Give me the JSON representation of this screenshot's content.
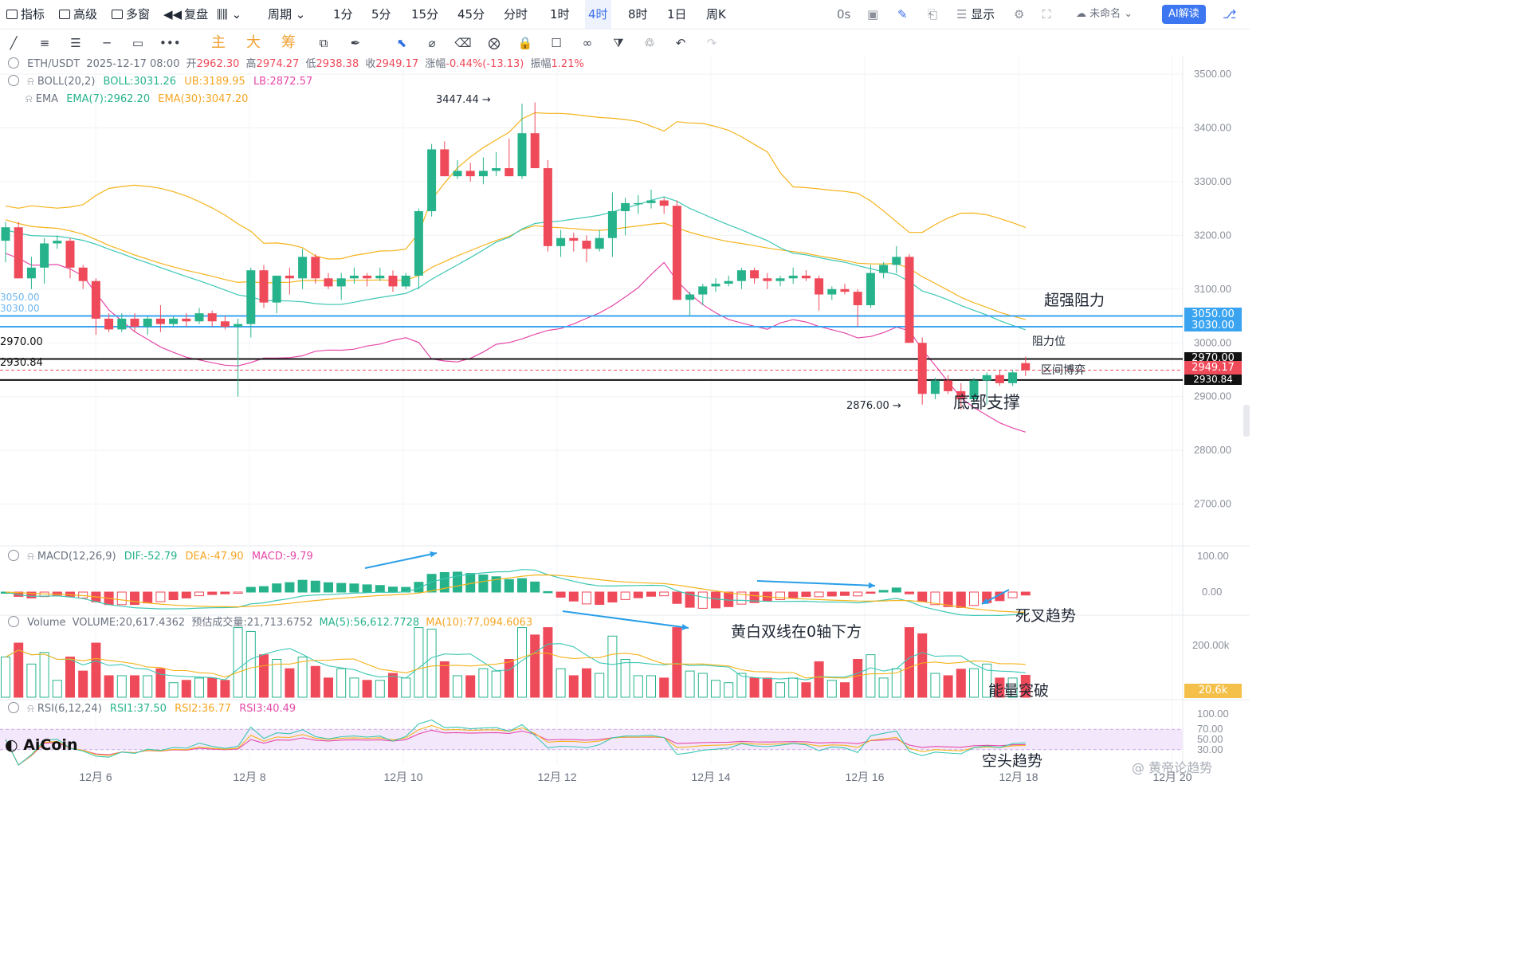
{
  "toolbar": {
    "indicators": "指标",
    "advanced": "高级",
    "multi_window": "多窗",
    "replay": "复盘",
    "period": "周期",
    "intervals": [
      "1分",
      "5分",
      "15分",
      "45分",
      "分时",
      "1时",
      "4时",
      "8时",
      "1日",
      "周K"
    ],
    "active_interval": "4时",
    "latency": "0s",
    "display": "显示",
    "account": "未命名",
    "ai_button": "AI解读"
  },
  "drawing_tools": {
    "main": "主",
    "big": "大",
    "chips": "筹"
  },
  "header": {
    "symbol": "ETH/USDT",
    "datetime": "2025-12-17 08:00",
    "open_label": "开",
    "open": "2962.30",
    "high_label": "高",
    "high": "2974.27",
    "low_label": "低",
    "low": "2938.38",
    "close_label": "收",
    "close": "2949.17",
    "change_label": "涨幅",
    "change": "-0.44%(-13.13)",
    "amplitude_label": "振幅",
    "amplitude": "1.21%"
  },
  "indicators": {
    "boll": {
      "label": "BOLL(20,2)",
      "mid": "BOLL:3031.26",
      "ub": "UB:3189.95",
      "lb": "LB:2872.57"
    },
    "ema": {
      "label": "EMA",
      "ema7": "EMA(7):2962.20",
      "ema30": "EMA(30):3047.20"
    },
    "macd": {
      "label": "MACD(12,26,9)",
      "dif": "DIF:-52.79",
      "dea": "DEA:-47.90",
      "macd": "MACD:-9.79"
    },
    "volume": {
      "label": "Volume",
      "value": "VOLUME:20,617.4362",
      "est": "预估成交量:21,713.6752",
      "ma5": "MA(5):56,612.7728",
      "ma10": "MA(10):77,094.6063"
    },
    "rsi": {
      "label": "RSI(6,12,24)",
      "rsi1": "RSI1:37.50",
      "rsi2": "RSI2:36.77",
      "rsi3": "RSI3:40.49"
    }
  },
  "annotations": {
    "strong_resistance": "超强阻力",
    "resistance": "阻力位",
    "range_game": "区间博弈",
    "bottom_support": "底部支撑",
    "death_cross": "死叉趋势",
    "below_zero": "黄白双线在0轴下方",
    "volume_break": "能量突破",
    "bear_trend": "空头趋势",
    "high_marker": "3447.44",
    "low_marker": "2876.00"
  },
  "levels": {
    "l3050": "3050.00",
    "l3030": "3030.00",
    "l2970": "2970.00",
    "l2930": "2930.84",
    "last_price": "2949.17",
    "vol_last": "20.6k"
  },
  "price_axis": [
    "3500.00",
    "3400.00",
    "3300.00",
    "3200.00",
    "3100.00",
    "3000.00",
    "2900.00",
    "2800.00",
    "2700.00"
  ],
  "macd_axis": [
    "100.00",
    "0.00"
  ],
  "vol_axis": [
    "200.00k"
  ],
  "rsi_axis": [
    "100.00",
    "70.00",
    "50.00",
    "30.00"
  ],
  "date_axis": [
    "12月 6",
    "12月 8",
    "12月 10",
    "12月 12",
    "12月 14",
    "12月 16",
    "12月 18",
    "12月 20"
  ],
  "watermark": "@ 黄帝论趋势",
  "logo": "AiCoin",
  "colors": {
    "up": "#26b38c",
    "down": "#ef4a5a",
    "boll_band": "#f5b31b",
    "boll_lb": "#e548a8",
    "ema7": "#f5b31b",
    "ema30": "#3cc7b4",
    "resistance_line": "#3aa4f0",
    "support_line": "#111111",
    "arrow": "#2a9ee8"
  },
  "chart_data": {
    "type": "candlestick",
    "symbol": "ETH/USDT",
    "interval": "4h",
    "ohlc": [
      [
        3190,
        3225,
        3150,
        3215
      ],
      [
        3215,
        3225,
        3120,
        3120
      ],
      [
        3120,
        3160,
        3100,
        3140
      ],
      [
        3140,
        3195,
        3110,
        3185
      ],
      [
        3185,
        3200,
        3175,
        3190
      ],
      [
        3190,
        3195,
        3120,
        3140
      ],
      [
        3140,
        3145,
        3100,
        3115
      ],
      [
        3115,
        3120,
        3015,
        3045
      ],
      [
        3045,
        3055,
        3020,
        3025
      ],
      [
        3025,
        3055,
        3020,
        3045
      ],
      [
        3045,
        3055,
        3020,
        3030
      ],
      [
        3030,
        3050,
        3015,
        3045
      ],
      [
        3045,
        3070,
        3020,
        3035
      ],
      [
        3035,
        3050,
        3030,
        3045
      ],
      [
        3045,
        3055,
        3030,
        3040
      ],
      [
        3040,
        3065,
        3035,
        3055
      ],
      [
        3055,
        3060,
        3030,
        3040
      ],
      [
        3040,
        3050,
        3025,
        3030
      ],
      [
        3030,
        3045,
        2900,
        3035
      ],
      [
        3035,
        3140,
        3010,
        3135
      ],
      [
        3135,
        3145,
        3065,
        3075
      ],
      [
        3075,
        3125,
        3055,
        3125
      ],
      [
        3125,
        3140,
        3090,
        3120
      ],
      [
        3120,
        3175,
        3100,
        3160
      ],
      [
        3160,
        3165,
        3110,
        3120
      ],
      [
        3120,
        3130,
        3100,
        3105
      ],
      [
        3105,
        3130,
        3080,
        3120
      ],
      [
        3120,
        3140,
        3110,
        3125
      ],
      [
        3125,
        3130,
        3105,
        3120
      ],
      [
        3120,
        3140,
        3115,
        3125
      ],
      [
        3125,
        3135,
        3095,
        3105
      ],
      [
        3105,
        3130,
        3100,
        3125
      ],
      [
        3125,
        3250,
        3100,
        3245
      ],
      [
        3245,
        3370,
        3235,
        3360
      ],
      [
        3360,
        3375,
        3310,
        3310
      ],
      [
        3310,
        3340,
        3305,
        3320
      ],
      [
        3320,
        3335,
        3300,
        3310
      ],
      [
        3310,
        3345,
        3295,
        3320
      ],
      [
        3320,
        3355,
        3310,
        3325
      ],
      [
        3325,
        3380,
        3310,
        3310
      ],
      [
        3310,
        3445,
        3305,
        3390
      ],
      [
        3390,
        3447.44,
        3325,
        3325
      ],
      [
        3325,
        3340,
        3170,
        3180
      ],
      [
        3180,
        3210,
        3160,
        3195
      ],
      [
        3195,
        3205,
        3170,
        3190
      ],
      [
        3190,
        3200,
        3150,
        3175
      ],
      [
        3175,
        3210,
        3170,
        3195
      ],
      [
        3195,
        3280,
        3160,
        3245
      ],
      [
        3245,
        3270,
        3200,
        3260
      ],
      [
        3260,
        3275,
        3240,
        3260
      ],
      [
        3260,
        3285,
        3250,
        3265
      ],
      [
        3265,
        3270,
        3240,
        3255
      ],
      [
        3255,
        3265,
        3080,
        3080
      ],
      [
        3080,
        3095,
        3050,
        3090
      ],
      [
        3090,
        3110,
        3070,
        3105
      ],
      [
        3105,
        3120,
        3095,
        3110
      ],
      [
        3110,
        3125,
        3105,
        3115
      ],
      [
        3115,
        3140,
        3100,
        3135
      ],
      [
        3135,
        3140,
        3110,
        3120
      ],
      [
        3120,
        3130,
        3100,
        3115
      ],
      [
        3115,
        3125,
        3105,
        3120
      ],
      [
        3120,
        3140,
        3110,
        3125
      ],
      [
        3125,
        3135,
        3115,
        3120
      ],
      [
        3120,
        3125,
        3060,
        3090
      ],
      [
        3090,
        3105,
        3080,
        3100
      ],
      [
        3100,
        3110,
        3090,
        3095
      ],
      [
        3095,
        3100,
        3030,
        3070
      ],
      [
        3070,
        3145,
        3065,
        3130
      ],
      [
        3130,
        3150,
        3120,
        3145
      ],
      [
        3145,
        3180,
        3130,
        3160
      ],
      [
        3160,
        3165,
        3000,
        3000
      ],
      [
        3000,
        3010,
        2885,
        2905
      ],
      [
        2905,
        2935,
        2895,
        2930
      ],
      [
        2930,
        2940,
        2905,
        2910
      ],
      [
        2910,
        2925,
        2876,
        2895
      ],
      [
        2895,
        2935,
        2885,
        2930
      ],
      [
        2930,
        2945,
        2885,
        2940
      ],
      [
        2940,
        2950,
        2920,
        2925
      ],
      [
        2925,
        2950,
        2920,
        2945
      ],
      [
        2962.3,
        2974.27,
        2938.38,
        2949.17
      ]
    ],
    "price_range": [
      2650,
      3550
    ],
    "key_levels": {
      "strong_resistance": [
        3050,
        3030
      ],
      "range_top": 2970,
      "range_bottom": 2930.84
    },
    "macd_range": [
      -60,
      130
    ],
    "volume_range": [
      0,
      260000
    ],
    "rsi_range": [
      0,
      100
    ]
  }
}
